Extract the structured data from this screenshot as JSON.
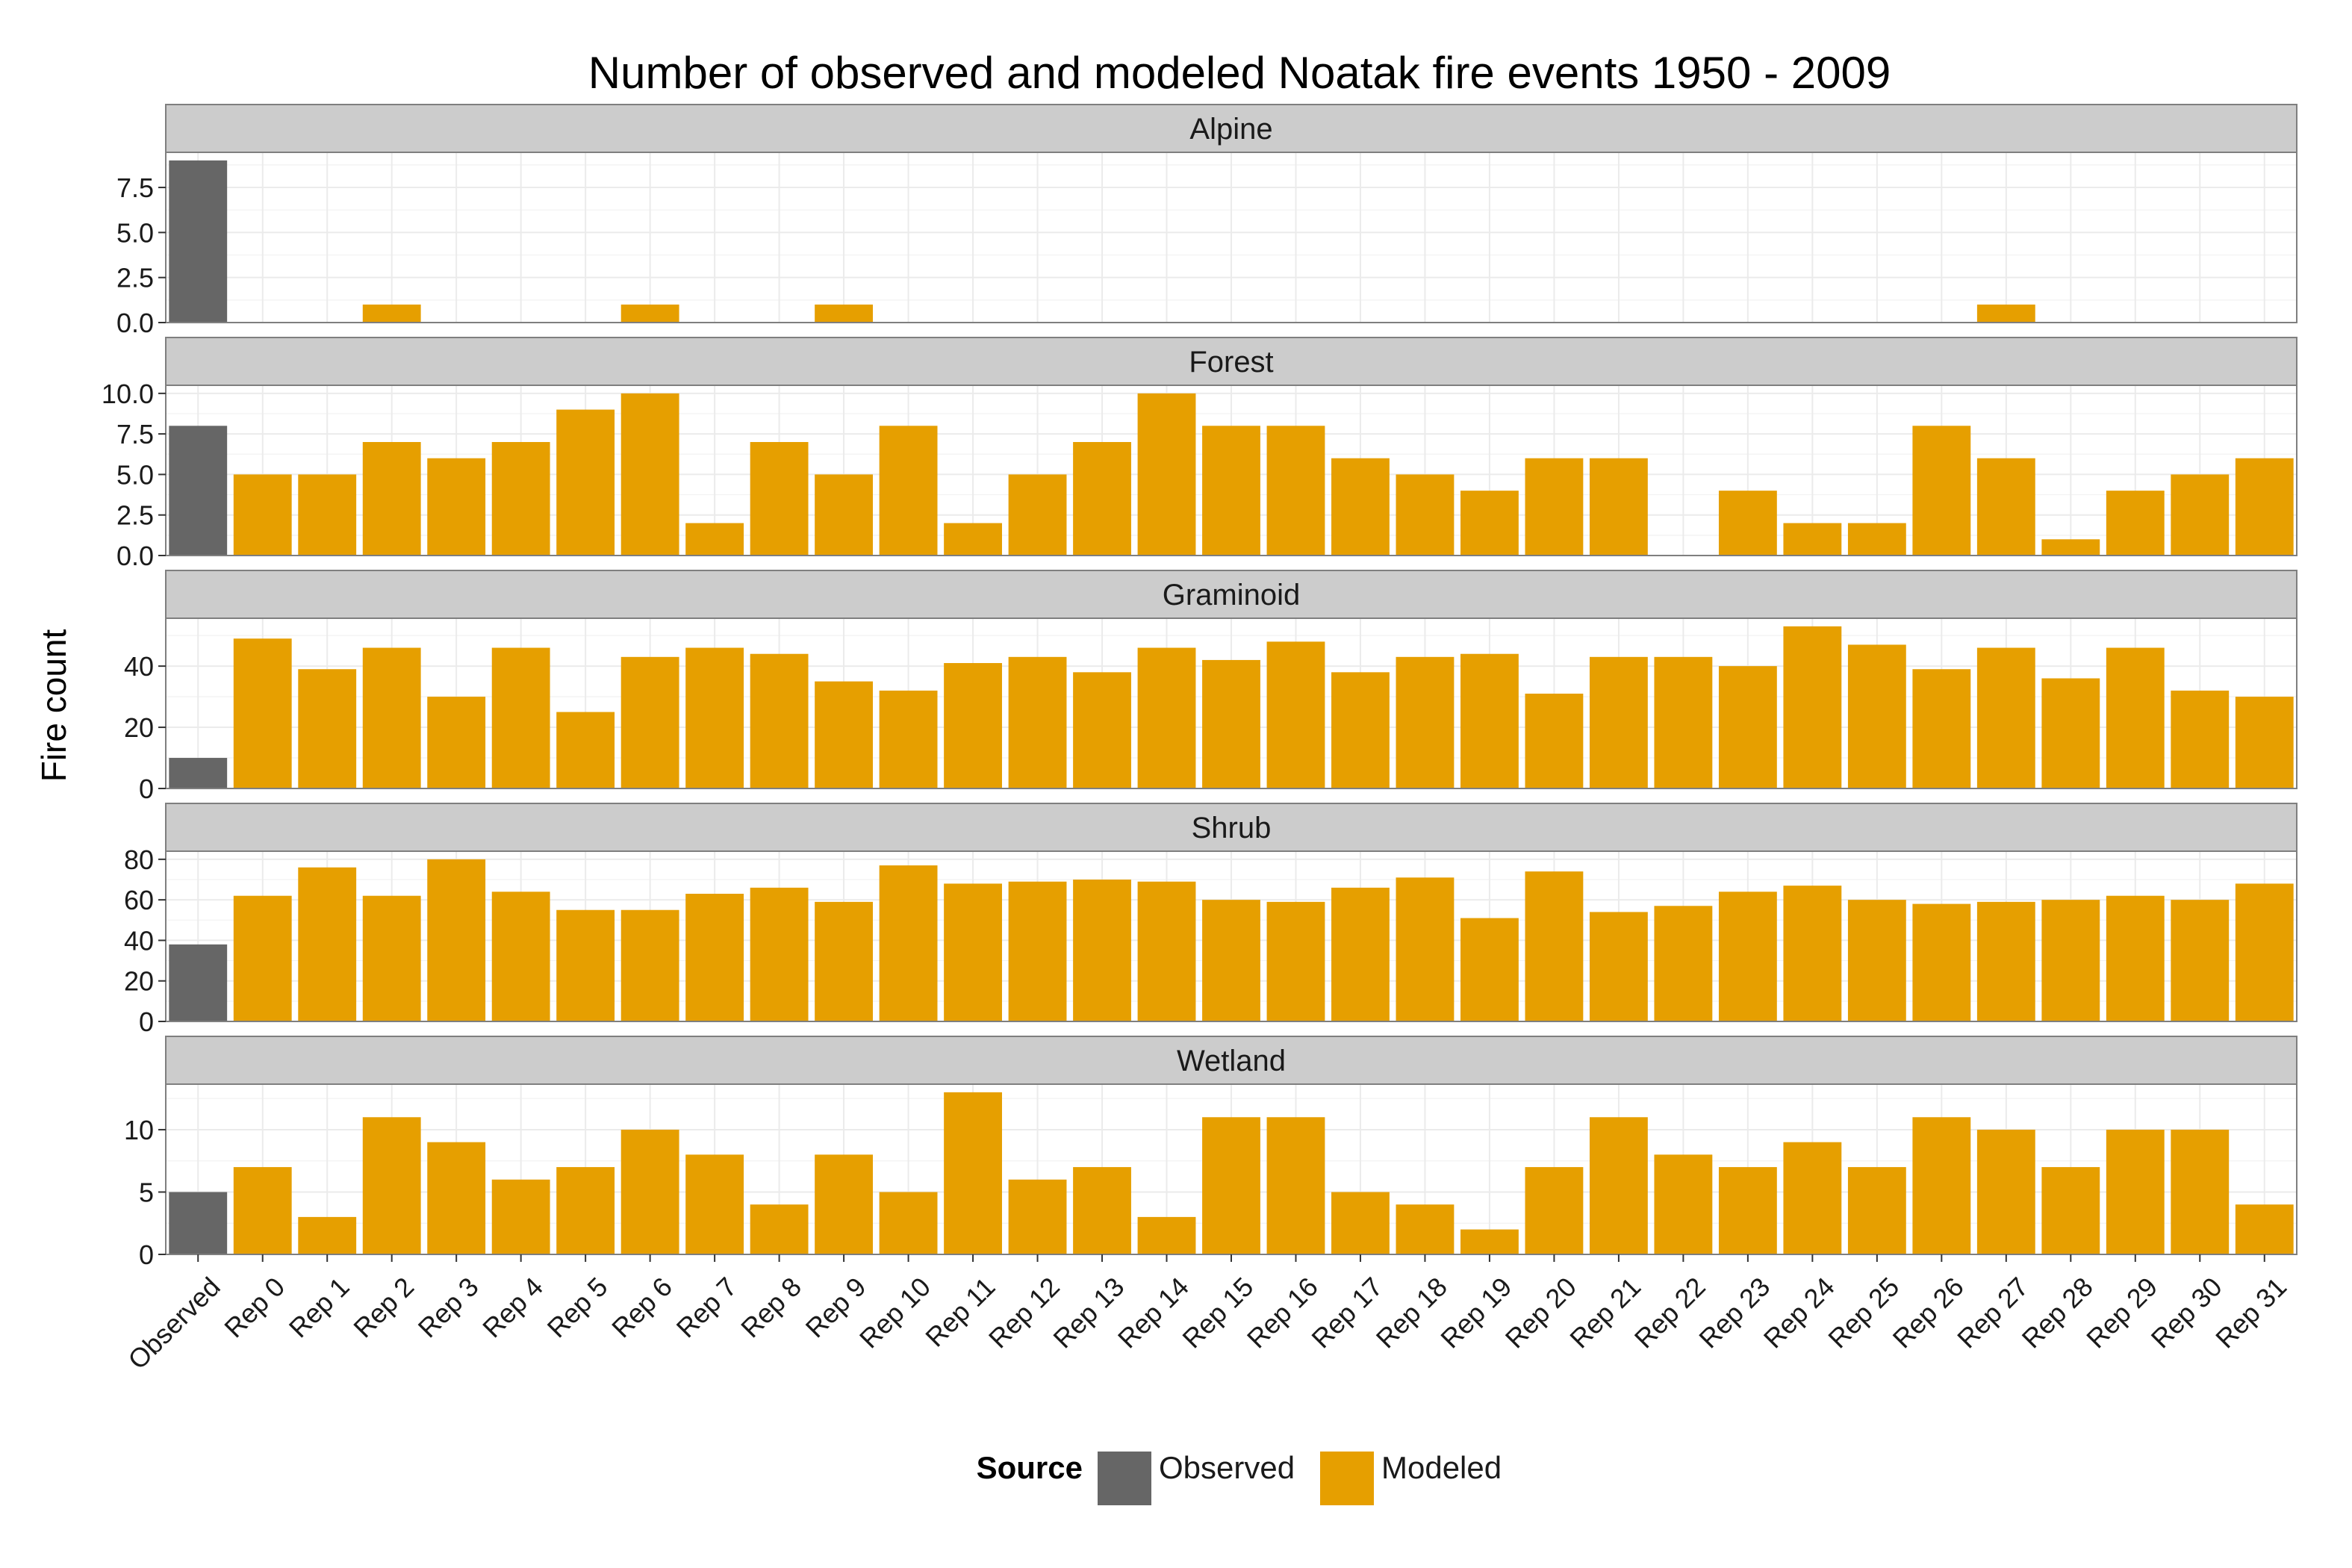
{
  "chart_data": {
    "type": "bar",
    "title": "Number of observed and modeled Noatak fire events 1950 - 2009",
    "ylabel": "Fire count",
    "xlabel": "",
    "categories": [
      "Observed",
      "Rep 0",
      "Rep 1",
      "Rep 2",
      "Rep 3",
      "Rep 4",
      "Rep 5",
      "Rep 6",
      "Rep 7",
      "Rep 8",
      "Rep 9",
      "Rep 10",
      "Rep 11",
      "Rep 12",
      "Rep 13",
      "Rep 14",
      "Rep 15",
      "Rep 16",
      "Rep 17",
      "Rep 18",
      "Rep 19",
      "Rep 20",
      "Rep 21",
      "Rep 22",
      "Rep 23",
      "Rep 24",
      "Rep 25",
      "Rep 26",
      "Rep 27",
      "Rep 28",
      "Rep 29",
      "Rep 30",
      "Rep 31"
    ],
    "legend": {
      "title": "Source",
      "position": "bottom",
      "items": [
        {
          "label": "Observed",
          "color": "#666666"
        },
        {
          "label": "Modeled",
          "color": "#E69F00"
        }
      ]
    },
    "facets": [
      {
        "name": "Alpine",
        "ylim": [
          0,
          9.45
        ],
        "yticks": [
          "0.0",
          "2.5",
          "5.0",
          "7.5"
        ],
        "ytick_values": [
          0,
          2.5,
          5,
          7.5
        ],
        "values": [
          9,
          0,
          0,
          1,
          0,
          0,
          0,
          1,
          0,
          0,
          1,
          0,
          0,
          0,
          0,
          0,
          0,
          0,
          0,
          0,
          0,
          0,
          0,
          0,
          0,
          0,
          0,
          0,
          1,
          0,
          0,
          0,
          0
        ]
      },
      {
        "name": "Forest",
        "ylim": [
          0,
          10.5
        ],
        "yticks": [
          "0.0",
          "2.5",
          "5.0",
          "7.5",
          "10.0"
        ],
        "ytick_values": [
          0,
          2.5,
          5,
          7.5,
          10
        ],
        "values": [
          8,
          5,
          5,
          7,
          6,
          7,
          9,
          10,
          2,
          7,
          5,
          8,
          2,
          5,
          7,
          10,
          8,
          8,
          6,
          5,
          4,
          6,
          6,
          0,
          4,
          2,
          2,
          8,
          6,
          1,
          4,
          5,
          6
        ]
      },
      {
        "name": "Graminoid",
        "ylim": [
          0,
          55.65
        ],
        "yticks": [
          "0",
          "20",
          "40"
        ],
        "ytick_values": [
          0,
          20,
          40
        ],
        "values": [
          10,
          49,
          39,
          46,
          30,
          46,
          25,
          43,
          46,
          44,
          35,
          32,
          41,
          43,
          38,
          46,
          42,
          48,
          38,
          43,
          44,
          31,
          43,
          43,
          40,
          53,
          47,
          39,
          46,
          36,
          46,
          32,
          30
        ]
      },
      {
        "name": "Shrub",
        "ylim": [
          0,
          84
        ],
        "yticks": [
          "0",
          "20",
          "40",
          "60",
          "80"
        ],
        "ytick_values": [
          0,
          20,
          40,
          60,
          80
        ],
        "values": [
          38,
          62,
          76,
          62,
          80,
          64,
          55,
          55,
          63,
          66,
          59,
          77,
          68,
          69,
          70,
          69,
          60,
          59,
          66,
          71,
          51,
          74,
          54,
          57,
          64,
          67,
          60,
          58,
          59,
          60,
          62,
          60,
          68
        ]
      },
      {
        "name": "Wetland",
        "ylim": [
          0,
          13.65
        ],
        "yticks": [
          "0",
          "5",
          "10"
        ],
        "ytick_values": [
          0,
          5,
          10
        ],
        "values": [
          5,
          7,
          3,
          11,
          9,
          6,
          7,
          10,
          8,
          4,
          8,
          5,
          13,
          6,
          7,
          3,
          11,
          11,
          5,
          4,
          2,
          7,
          11,
          8,
          7,
          9,
          7,
          11,
          10,
          7,
          10,
          10,
          4
        ]
      }
    ]
  }
}
